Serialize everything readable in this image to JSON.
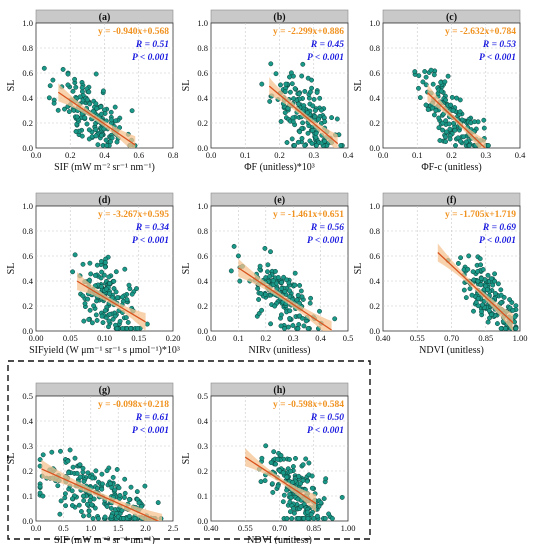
{
  "chart_data": [
    {
      "type": "scatter",
      "panel": "(a)",
      "xlabel": "SIF (mW m⁻² sr⁻¹ nm⁻¹)",
      "ylabel": "SL",
      "xlim": [
        0,
        0.8
      ],
      "ylim": [
        0,
        1.0
      ],
      "xticks": [
        "0.0",
        "0.2",
        "0.4",
        "0.6",
        "0.8"
      ],
      "yticks": [
        "0.0",
        "0.2",
        "0.4",
        "0.6",
        "0.8",
        "1.0"
      ],
      "equation": "y = -0.940x+0.568",
      "r_label": "R = 0.51",
      "p_label": "P < 0.001",
      "slope": -0.94,
      "intercept": 0.568,
      "fit_x": [
        0.13,
        0.58
      ],
      "x_center": 0.33,
      "x_spread": 0.1,
      "noise": 0.13,
      "n": 170,
      "seed": 11
    },
    {
      "type": "scatter",
      "panel": "(b)",
      "xlabel": "ΦF (unitless)*10³",
      "ylabel": "SL",
      "xlim": [
        0,
        0.4
      ],
      "ylim": [
        0,
        1.0
      ],
      "xticks": [
        "0.0",
        "0.1",
        "0.2",
        "0.3",
        "0.4"
      ],
      "yticks": [
        "0.0",
        "0.2",
        "0.4",
        "0.6",
        "0.8",
        "1.0"
      ],
      "equation": "y = -2.299x+0.886",
      "r_label": "R = 0.45",
      "p_label": "P < 0.001",
      "slope": -2.299,
      "intercept": 0.886,
      "fit_x": [
        0.17,
        0.37
      ],
      "x_center": 0.27,
      "x_spread": 0.045,
      "noise": 0.13,
      "n": 170,
      "seed": 23
    },
    {
      "type": "scatter",
      "panel": "(c)",
      "xlabel": "ΦF-c (unitless)",
      "ylabel": "SL",
      "xlim": [
        0,
        0.4
      ],
      "ylim": [
        0,
        1.0
      ],
      "xticks": [
        "0.0",
        "0.1",
        "0.2",
        "0.3",
        "0.4"
      ],
      "yticks": [
        "0.0",
        "0.2",
        "0.4",
        "0.6",
        "0.8",
        "1.0"
      ],
      "equation": "y = -2.632x+0.784",
      "r_label": "R = 0.53",
      "p_label": "P < 0.001",
      "slope": -2.632,
      "intercept": 0.784,
      "fit_x": [
        0.13,
        0.3
      ],
      "x_center": 0.2,
      "x_spread": 0.045,
      "noise": 0.12,
      "n": 170,
      "seed": 37
    },
    {
      "type": "scatter",
      "panel": "(d)",
      "xlabel": "SIFyield (W μm⁻¹ sr⁻¹ s μmol⁻¹)*10³",
      "ylabel": "SL",
      "xlim": [
        0,
        0.2
      ],
      "ylim": [
        0,
        1.0
      ],
      "xticks": [
        "0.00",
        "0.05",
        "0.10",
        "0.15",
        "0.20"
      ],
      "yticks": [
        "0.0",
        "0.2",
        "0.4",
        "0.6",
        "0.8",
        "1.0"
      ],
      "equation": "y = -3.267x+0.595",
      "r_label": "R = 0.34",
      "p_label": "P < 0.001",
      "slope": -3.267,
      "intercept": 0.595,
      "fit_x": [
        0.06,
        0.16
      ],
      "x_center": 0.105,
      "x_spread": 0.022,
      "noise": 0.14,
      "n": 170,
      "seed": 41
    },
    {
      "type": "scatter",
      "panel": "(e)",
      "xlabel": "NIRv (unitless)",
      "ylabel": "SL",
      "xlim": [
        0,
        0.5
      ],
      "ylim": [
        0,
        1.0
      ],
      "xticks": [
        "0.0",
        "0.1",
        "0.2",
        "0.3",
        "0.4",
        "0.5"
      ],
      "yticks": [
        "0.0",
        "0.2",
        "0.4",
        "0.6",
        "0.8",
        "1.0"
      ],
      "equation": "y = -1.461x+0.651",
      "r_label": "R = 0.56",
      "p_label": "P < 0.001",
      "slope": -1.461,
      "intercept": 0.651,
      "fit_x": [
        0.1,
        0.44
      ],
      "x_center": 0.26,
      "x_spread": 0.07,
      "noise": 0.12,
      "n": 170,
      "seed": 53
    },
    {
      "type": "scatter",
      "panel": "(f)",
      "xlabel": "NDVI (unitless)",
      "ylabel": "SL",
      "xlim": [
        0.4,
        1.0
      ],
      "ylim": [
        0,
        1.0
      ],
      "xticks": [
        "0.40",
        "0.55",
        "0.70",
        "0.85",
        "1.00"
      ],
      "yticks": [
        "0.0",
        "0.2",
        "0.4",
        "0.6",
        "0.8",
        "1.0"
      ],
      "equation": "y = -1.705x+1.719",
      "r_label": "R = 0.69",
      "p_label": "P < 0.001",
      "slope": -1.705,
      "intercept": 1.719,
      "fit_x": [
        0.64,
        0.97
      ],
      "x_center": 0.86,
      "x_spread": 0.06,
      "noise": 0.1,
      "n": 170,
      "seed": 67
    },
    {
      "type": "scatter",
      "panel": "(g)",
      "xlabel": "SIF (mW m⁻² sr⁻¹ nm⁻¹)",
      "ylabel": "SL",
      "xlim": [
        0,
        2.5
      ],
      "ylim": [
        0,
        0.5
      ],
      "xticks": [
        "0.0",
        "0.5",
        "1.0",
        "1.5",
        "2.0",
        "2.5"
      ],
      "yticks": [
        "0.0",
        "0.1",
        "0.2",
        "0.3",
        "0.4",
        "0.5"
      ],
      "equation": "y = -0.098x+0.218",
      "r_label": "R = 0.61",
      "p_label": "P < 0.001",
      "slope": -0.098,
      "intercept": 0.218,
      "fit_x": [
        0.1,
        2.3
      ],
      "x_center": 1.1,
      "x_spread": 0.55,
      "noise": 0.06,
      "n": 230,
      "seed": 79
    },
    {
      "type": "scatter",
      "panel": "(h)",
      "xlabel": "NDVI (unitless)",
      "ylabel": "SL",
      "xlim": [
        0.4,
        1.0
      ],
      "ylim": [
        0,
        0.5
      ],
      "xticks": [
        "0.40",
        "0.55",
        "0.70",
        "0.85",
        "1.00"
      ],
      "yticks": [
        "0.0",
        "0.1",
        "0.2",
        "0.3",
        "0.4",
        "0.5"
      ],
      "equation": "y = -0.598x+0.584",
      "r_label": "R = 0.50",
      "p_label": "P < 0.001",
      "slope": -0.598,
      "intercept": 0.584,
      "fit_x": [
        0.55,
        0.86
      ],
      "x_center": 0.76,
      "x_spread": 0.07,
      "noise": 0.07,
      "n": 200,
      "seed": 97
    }
  ],
  "colors": {
    "points": "#1a9988",
    "point_edge": "#0c3d38",
    "fit_line": "#d9531e",
    "confidence_band": "#f6c391",
    "equation_text": "#f0921f",
    "stats_text": "#1a1adf",
    "title_bar": "#c9c9c9"
  },
  "dashed_group": [
    "(g)",
    "(h)"
  ],
  "grid": true
}
